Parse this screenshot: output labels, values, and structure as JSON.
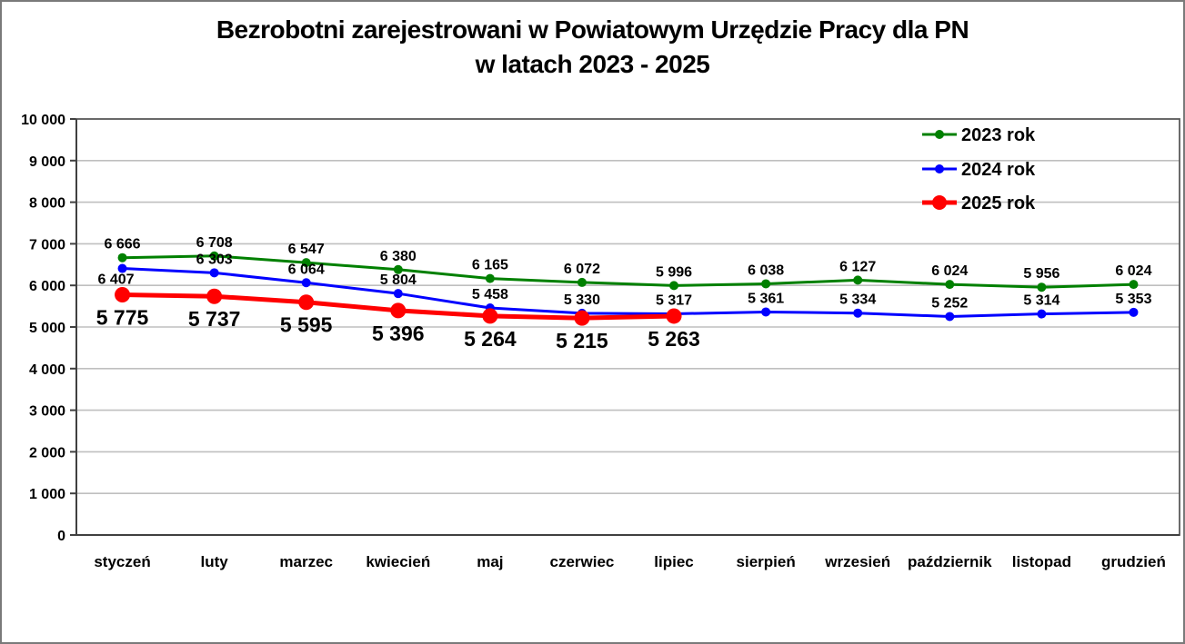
{
  "chart_data": {
    "type": "line",
    "title_lines": [
      "Bezrobotni zarejestrowani w Powiatowym Urzędzie Pracy dla PN",
      "w latach 2023 - 2025"
    ],
    "categories": [
      "styczeń",
      "luty",
      "marzec",
      "kwiecień",
      "maj",
      "czerwiec",
      "lipiec",
      "sierpień",
      "wrzesień",
      "październik",
      "listopad",
      "grudzień"
    ],
    "series": [
      {
        "name": "2023 rok",
        "color": "#008000",
        "line_width": 3,
        "marker_radius": 5,
        "label_font_size": 16,
        "label_side": "above",
        "values": [
          6666,
          6708,
          6547,
          6380,
          6165,
          6072,
          5996,
          6038,
          6127,
          6024,
          5956,
          6024
        ]
      },
      {
        "name": "2024 rok",
        "color": "#0000ff",
        "line_width": 3,
        "marker_radius": 5,
        "label_font_size": 16,
        "label_side": "above",
        "label_overrides": {
          "0": {
            "dx": -7,
            "dy": 17
          }
        },
        "values": [
          6407,
          6303,
          6064,
          5804,
          5458,
          5330,
          5317,
          5361,
          5334,
          5252,
          5314,
          5353
        ]
      },
      {
        "name": "2025 rok",
        "color": "#ff0000",
        "line_width": 5,
        "marker_radius": 8.5,
        "label_font_size": 23,
        "label_side": "below",
        "values": [
          5775,
          5737,
          5595,
          5396,
          5264,
          5215,
          5263
        ]
      }
    ],
    "y_axis": {
      "min": 0,
      "max": 10000,
      "step": 1000,
      "ylim": [
        0,
        10000
      ]
    },
    "xlabel": "",
    "ylabel": "",
    "grid": true,
    "legend_position": "top-right",
    "number_format": "space-thousands",
    "colors": {
      "gridline": "#bfbfbf",
      "plot_border": "#595959",
      "axis": "#404040",
      "text": "#000000",
      "background": "#ffffff"
    }
  }
}
